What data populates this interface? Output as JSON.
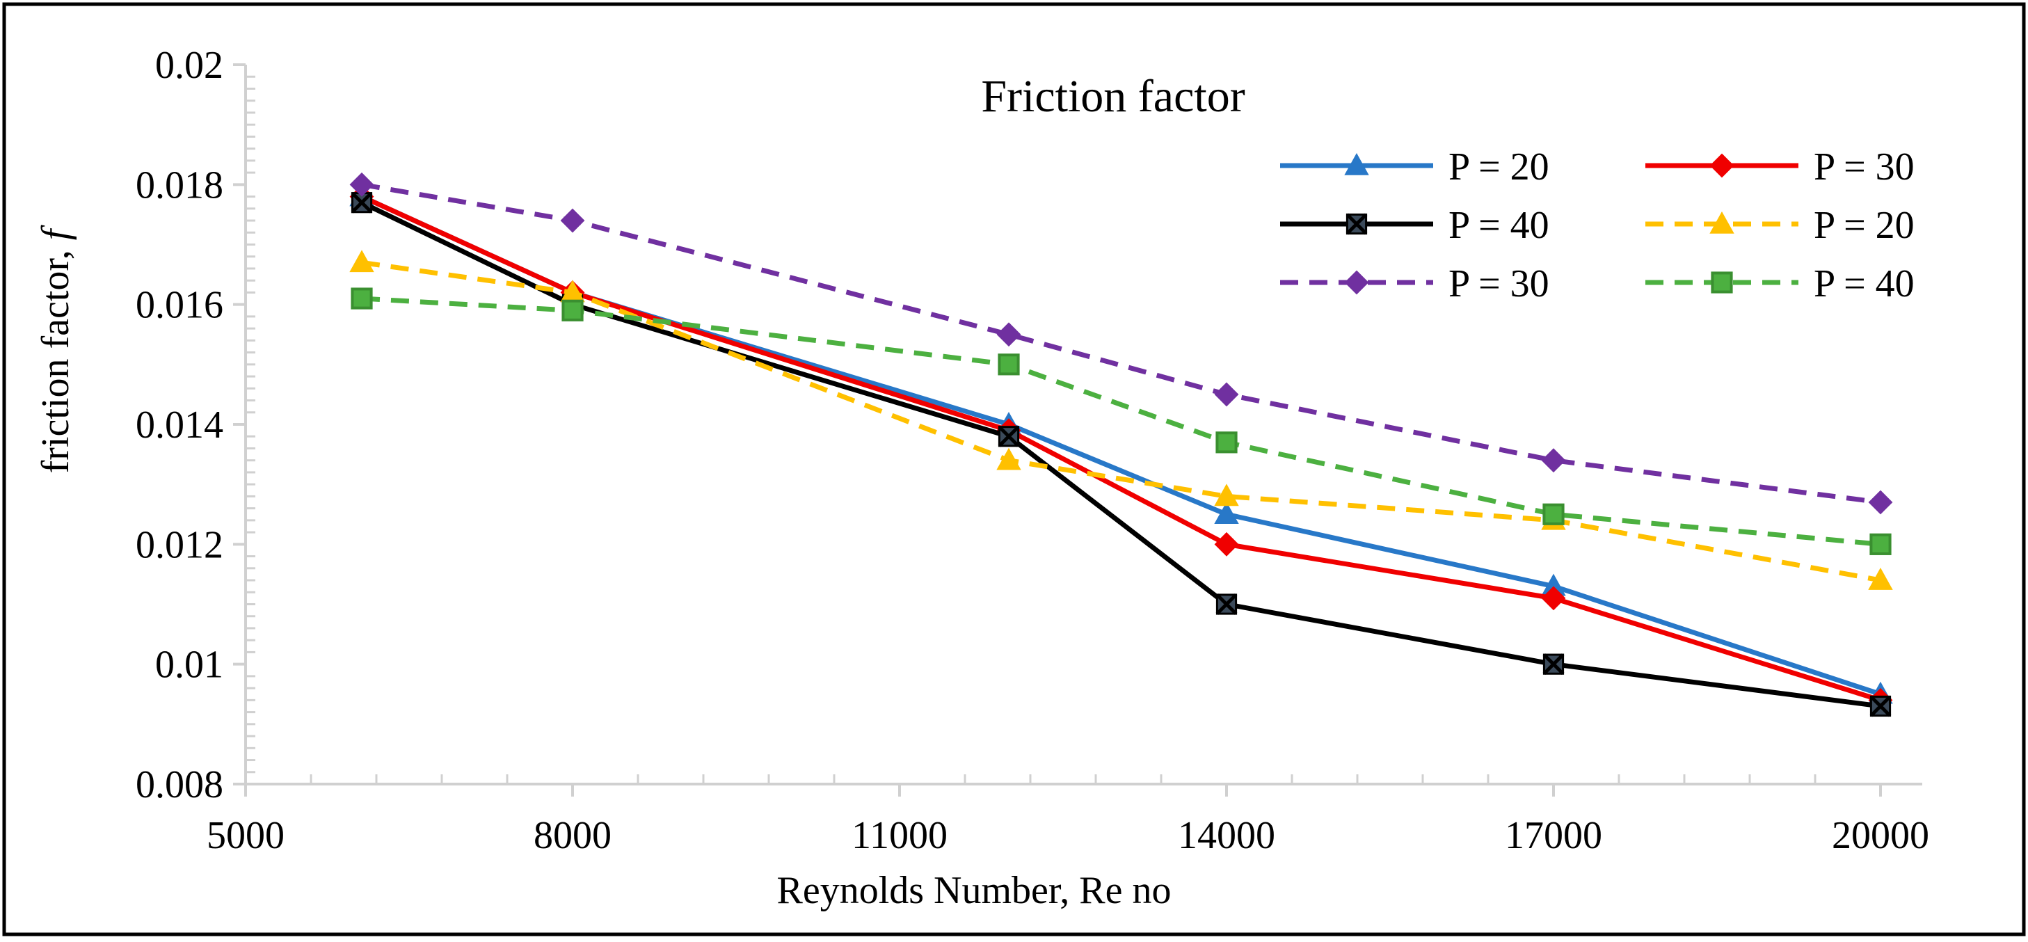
{
  "chart_data": {
    "type": "line",
    "title": "Friction factor",
    "xlabel": "Reynolds Number, Re no",
    "ylabel": "friction factor, ",
    "ylabel_symbol": "f",
    "x_ticks": [
      "5000",
      "8000",
      "11000",
      "14000",
      "17000",
      "20000"
    ],
    "y_ticks": [
      "0.008",
      "0.01",
      "0.012",
      "0.014",
      "0.016",
      "0.018",
      "0.02"
    ],
    "ylim": [
      0.008,
      0.02
    ],
    "categories": [
      "6000",
      "8000",
      "12000",
      "14000",
      "17000",
      "20000"
    ],
    "legend_position": "top-right",
    "series": [
      {
        "name": "P = 20",
        "values": [
          0.0178,
          0.0162,
          0.014,
          0.0125,
          0.0113,
          0.0095
        ],
        "color": "#2878C8",
        "dash": "solid",
        "marker": "triangle"
      },
      {
        "name": "P = 30",
        "values": [
          0.0178,
          0.0162,
          0.0139,
          0.012,
          0.0111,
          0.0094
        ],
        "color": "#F00000",
        "dash": "solid",
        "marker": "diamond"
      },
      {
        "name": "P = 40",
        "values": [
          0.0177,
          0.016,
          0.0138,
          0.011,
          0.01,
          0.0093
        ],
        "color": "#000000",
        "dash": "solid",
        "marker": "xsquare"
      },
      {
        "name": "P = 20",
        "values": [
          0.0167,
          0.0162,
          0.0134,
          0.0128,
          0.0124,
          0.0114
        ],
        "color": "#FFC000",
        "dash": "dashed",
        "marker": "triangle"
      },
      {
        "name": "P = 30",
        "values": [
          0.018,
          0.0174,
          0.0155,
          0.0145,
          0.0134,
          0.0127
        ],
        "color": "#7030A0",
        "dash": "dashed",
        "marker": "diamond"
      },
      {
        "name": "P = 40",
        "values": [
          0.0161,
          0.0159,
          0.015,
          0.0137,
          0.0125,
          0.012
        ],
        "color": "#4CB040",
        "dash": "dashed",
        "marker": "square"
      }
    ]
  }
}
